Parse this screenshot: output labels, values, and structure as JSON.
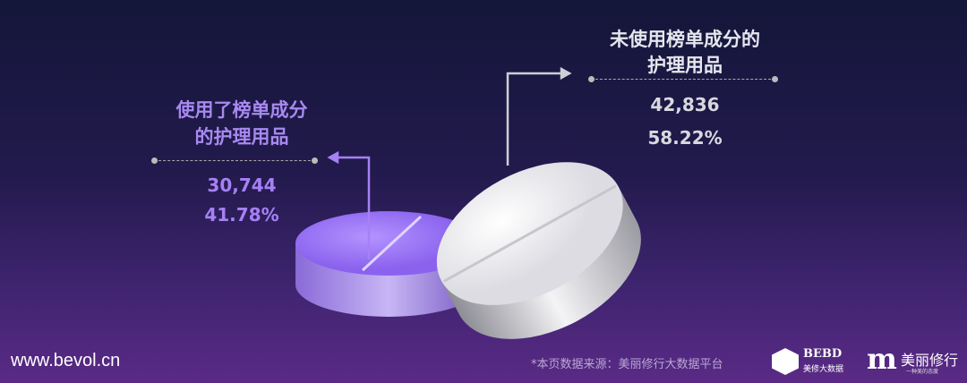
{
  "chart_data": {
    "type": "pie",
    "style": "3d pills",
    "slices": [
      {
        "label": "使用了榜单成分的护理用品",
        "value": 30744,
        "percent": "41.78%",
        "color": "#a680f5"
      },
      {
        "label": "未使用榜单成分的护理用品",
        "value": 42836,
        "percent": "58.22%",
        "color": "#f2f2f4"
      }
    ]
  },
  "left": {
    "line1": "使用了榜单成分",
    "line2": "的护理用品",
    "count": "30,744",
    "percent": "41.78%"
  },
  "right": {
    "line1": "未使用榜单成分的",
    "line2": "护理用品",
    "count": "42,836",
    "percent": "58.22%"
  },
  "footer": {
    "site": "www.bevol.cn",
    "source": "*本页数据来源：美丽修行大数据平台",
    "logo1": {
      "name": "BEBD",
      "sub": "美修大数据"
    },
    "logo2": {
      "name": "美丽修行",
      "sub": "一种美的态度"
    }
  }
}
